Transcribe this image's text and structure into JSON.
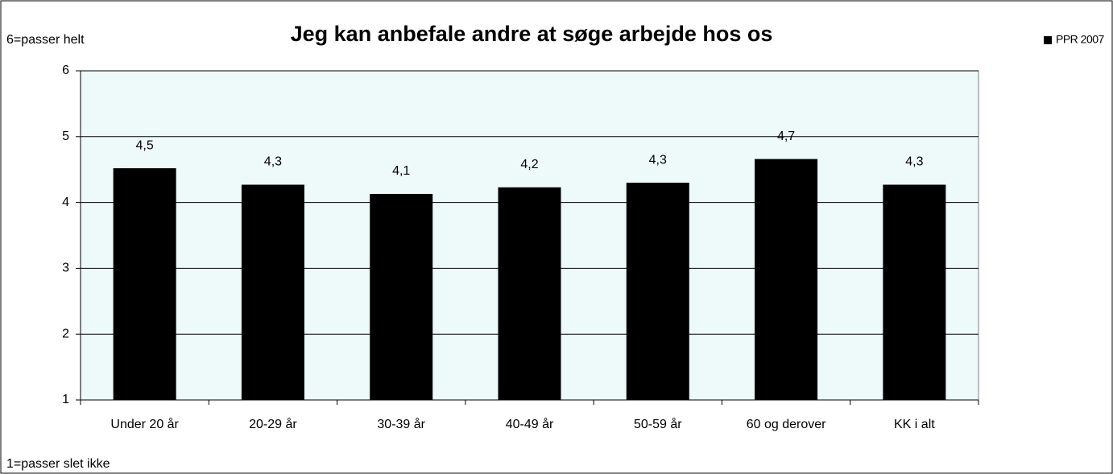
{
  "chart_data": {
    "type": "bar",
    "title": "Jeg kan anbefale andre at søge arbejde hos os",
    "annotations": [
      "6=passer helt",
      "1=passer slet ikke"
    ],
    "categories": [
      "Under  20 år",
      "20-29 år",
      "30-39 år",
      "40-49 år",
      "50-59  år",
      "60 og derover",
      "KK i alt"
    ],
    "series": [
      {
        "name": "PPR 2007",
        "color": "#000000",
        "values": [
          4.52,
          4.27,
          4.13,
          4.23,
          4.3,
          4.66,
          4.27
        ],
        "value_labels": [
          "4,5",
          "4,3",
          "4,1",
          "4,2",
          "4,3",
          "4,7",
          "4,3"
        ]
      }
    ],
    "ylim": [
      1,
      6
    ],
    "yticks": [
      1,
      2,
      3,
      4,
      5,
      6
    ],
    "grid": true,
    "legend": "top-right"
  }
}
